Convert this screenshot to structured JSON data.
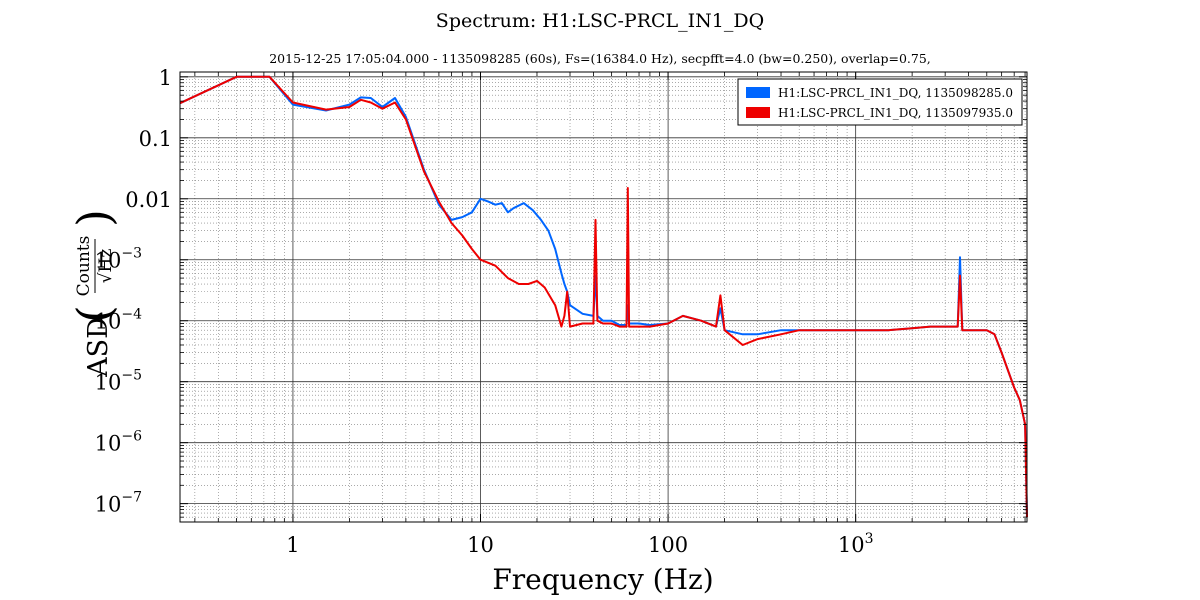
{
  "chart_data": {
    "type": "line",
    "title": "Spectrum: H1:LSC-PRCL_IN1_DQ",
    "subtitle": "2015-12-25 17:05:04.000 - 1135098285 (60s), Fs=(16384.0 Hz), secpfft=4.0 (bw=0.250), overlap=0.75,",
    "xlabel": "Frequency (Hz)",
    "ylabel_prefix": "ASD",
    "ylabel_num": "Counts",
    "ylabel_den": "√Hz",
    "xscale": "log",
    "yscale": "log",
    "xlim": [
      0.25,
      8192
    ],
    "ylim": [
      5e-08,
      1.2
    ],
    "grid": true,
    "legend_position": "top-right",
    "x_ticks": [
      {
        "value": 1,
        "label": "1"
      },
      {
        "value": 10,
        "label": "10"
      },
      {
        "value": 100,
        "label": "100"
      },
      {
        "value": 1000,
        "label": "10",
        "sup": "3"
      }
    ],
    "y_ticks": [
      {
        "value": 1,
        "label": "1",
        "sup": ""
      },
      {
        "value": 0.1,
        "label": "0.1",
        "sup": ""
      },
      {
        "value": 0.01,
        "label": "0.01",
        "sup": ""
      },
      {
        "value": 0.001,
        "label": "10",
        "sup": "−3"
      },
      {
        "value": 0.0001,
        "label": "10",
        "sup": "−4"
      },
      {
        "value": 1e-05,
        "label": "10",
        "sup": "−5"
      },
      {
        "value": 1e-06,
        "label": "10",
        "sup": "−6"
      },
      {
        "value": 1e-07,
        "label": "10",
        "sup": "−7"
      }
    ],
    "series": [
      {
        "name": "H1:LSC-PRCL_IN1_DQ, 1135098285.0",
        "color": "#0066ff",
        "x": [
          0.25,
          0.5,
          0.75,
          1.0,
          1.5,
          2.0,
          2.3,
          2.6,
          3.0,
          3.5,
          4.0,
          5.0,
          6.0,
          7.0,
          8.0,
          9.0,
          10.0,
          11.0,
          12.0,
          13.0,
          14.0,
          15.0,
          17.0,
          19.0,
          21.0,
          23.0,
          25.0,
          27.0,
          28.0,
          29.0,
          30.0,
          35.0,
          40.0,
          41.0,
          42.0,
          45.0,
          50.0,
          55.0,
          60.0,
          61.0,
          62.0,
          70.0,
          80.0,
          100.0,
          120.0,
          150.0,
          180.0,
          190.0,
          200.0,
          250.0,
          300.0,
          400.0,
          500.0,
          600.0,
          800.0,
          1000.0,
          1500.0,
          2000.0,
          2500.0,
          3000.0,
          3500.0,
          3600.0,
          3700.0,
          4000.0,
          5000.0,
          5500.0,
          6000.0,
          6500.0,
          7000.0,
          7500.0,
          8000.0,
          8192.0
        ],
        "y": [
          0.37,
          1.0,
          1.0,
          0.35,
          0.28,
          0.35,
          0.46,
          0.45,
          0.32,
          0.45,
          0.22,
          0.03,
          0.008,
          0.0045,
          0.005,
          0.006,
          0.01,
          0.009,
          0.008,
          0.0085,
          0.006,
          0.007,
          0.0085,
          0.0065,
          0.0045,
          0.003,
          0.0015,
          0.0006,
          0.0004,
          0.0003,
          0.00018,
          0.00013,
          0.00012,
          0.00055,
          0.00012,
          0.0001,
          0.0001,
          8.5e-05,
          8.5e-05,
          0.00018,
          9e-05,
          9e-05,
          8.5e-05,
          9e-05,
          0.00012,
          0.0001,
          8e-05,
          0.00016,
          7e-05,
          6e-05,
          6e-05,
          7e-05,
          7e-05,
          7e-05,
          7e-05,
          7e-05,
          7e-05,
          7.5e-05,
          8e-05,
          8e-05,
          8e-05,
          0.0011,
          7e-05,
          7e-05,
          7e-05,
          6e-05,
          3e-05,
          1.5e-05,
          8e-06,
          5e-06,
          2e-06,
          6e-08
        ]
      },
      {
        "name": "H1:LSC-PRCL_IN1_DQ, 1135097935.0",
        "color": "#ee0000",
        "x": [
          0.25,
          0.5,
          0.75,
          1.0,
          1.5,
          2.0,
          2.3,
          2.6,
          3.0,
          3.5,
          4.0,
          5.0,
          6.0,
          7.0,
          8.0,
          9.0,
          10.0,
          12.0,
          14.0,
          16.0,
          18.0,
          20.0,
          22.0,
          25.0,
          27.0,
          28.0,
          29.0,
          30.0,
          35.0,
          40.0,
          41.0,
          42.0,
          45.0,
          50.0,
          55.0,
          60.0,
          61.0,
          62.0,
          70.0,
          80.0,
          100.0,
          120.0,
          150.0,
          180.0,
          190.0,
          200.0,
          250.0,
          300.0,
          400.0,
          500.0,
          600.0,
          800.0,
          1000.0,
          1500.0,
          2000.0,
          2500.0,
          3000.0,
          3500.0,
          3600.0,
          3700.0,
          4000.0,
          5000.0,
          5500.0,
          6000.0,
          6500.0,
          7000.0,
          7500.0,
          8000.0,
          8192.0
        ],
        "y": [
          0.37,
          1.0,
          1.0,
          0.38,
          0.29,
          0.32,
          0.42,
          0.38,
          0.3,
          0.38,
          0.2,
          0.028,
          0.009,
          0.004,
          0.0025,
          0.0015,
          0.001,
          0.0008,
          0.0005,
          0.0004,
          0.0004,
          0.00045,
          0.00035,
          0.00018,
          8e-05,
          0.00012,
          0.0003,
          8e-05,
          9e-05,
          9e-05,
          0.0045,
          0.0001,
          9e-05,
          9e-05,
          8e-05,
          8e-05,
          0.015,
          8e-05,
          8e-05,
          8e-05,
          9e-05,
          0.00012,
          0.0001,
          8e-05,
          0.00026,
          7e-05,
          4e-05,
          5e-05,
          6e-05,
          7e-05,
          7e-05,
          7e-05,
          7e-05,
          7e-05,
          7.5e-05,
          8e-05,
          8e-05,
          8e-05,
          0.00055,
          7e-05,
          7e-05,
          7e-05,
          6e-05,
          3e-05,
          1.5e-05,
          8e-06,
          5e-06,
          2e-06,
          6e-08
        ]
      }
    ]
  }
}
